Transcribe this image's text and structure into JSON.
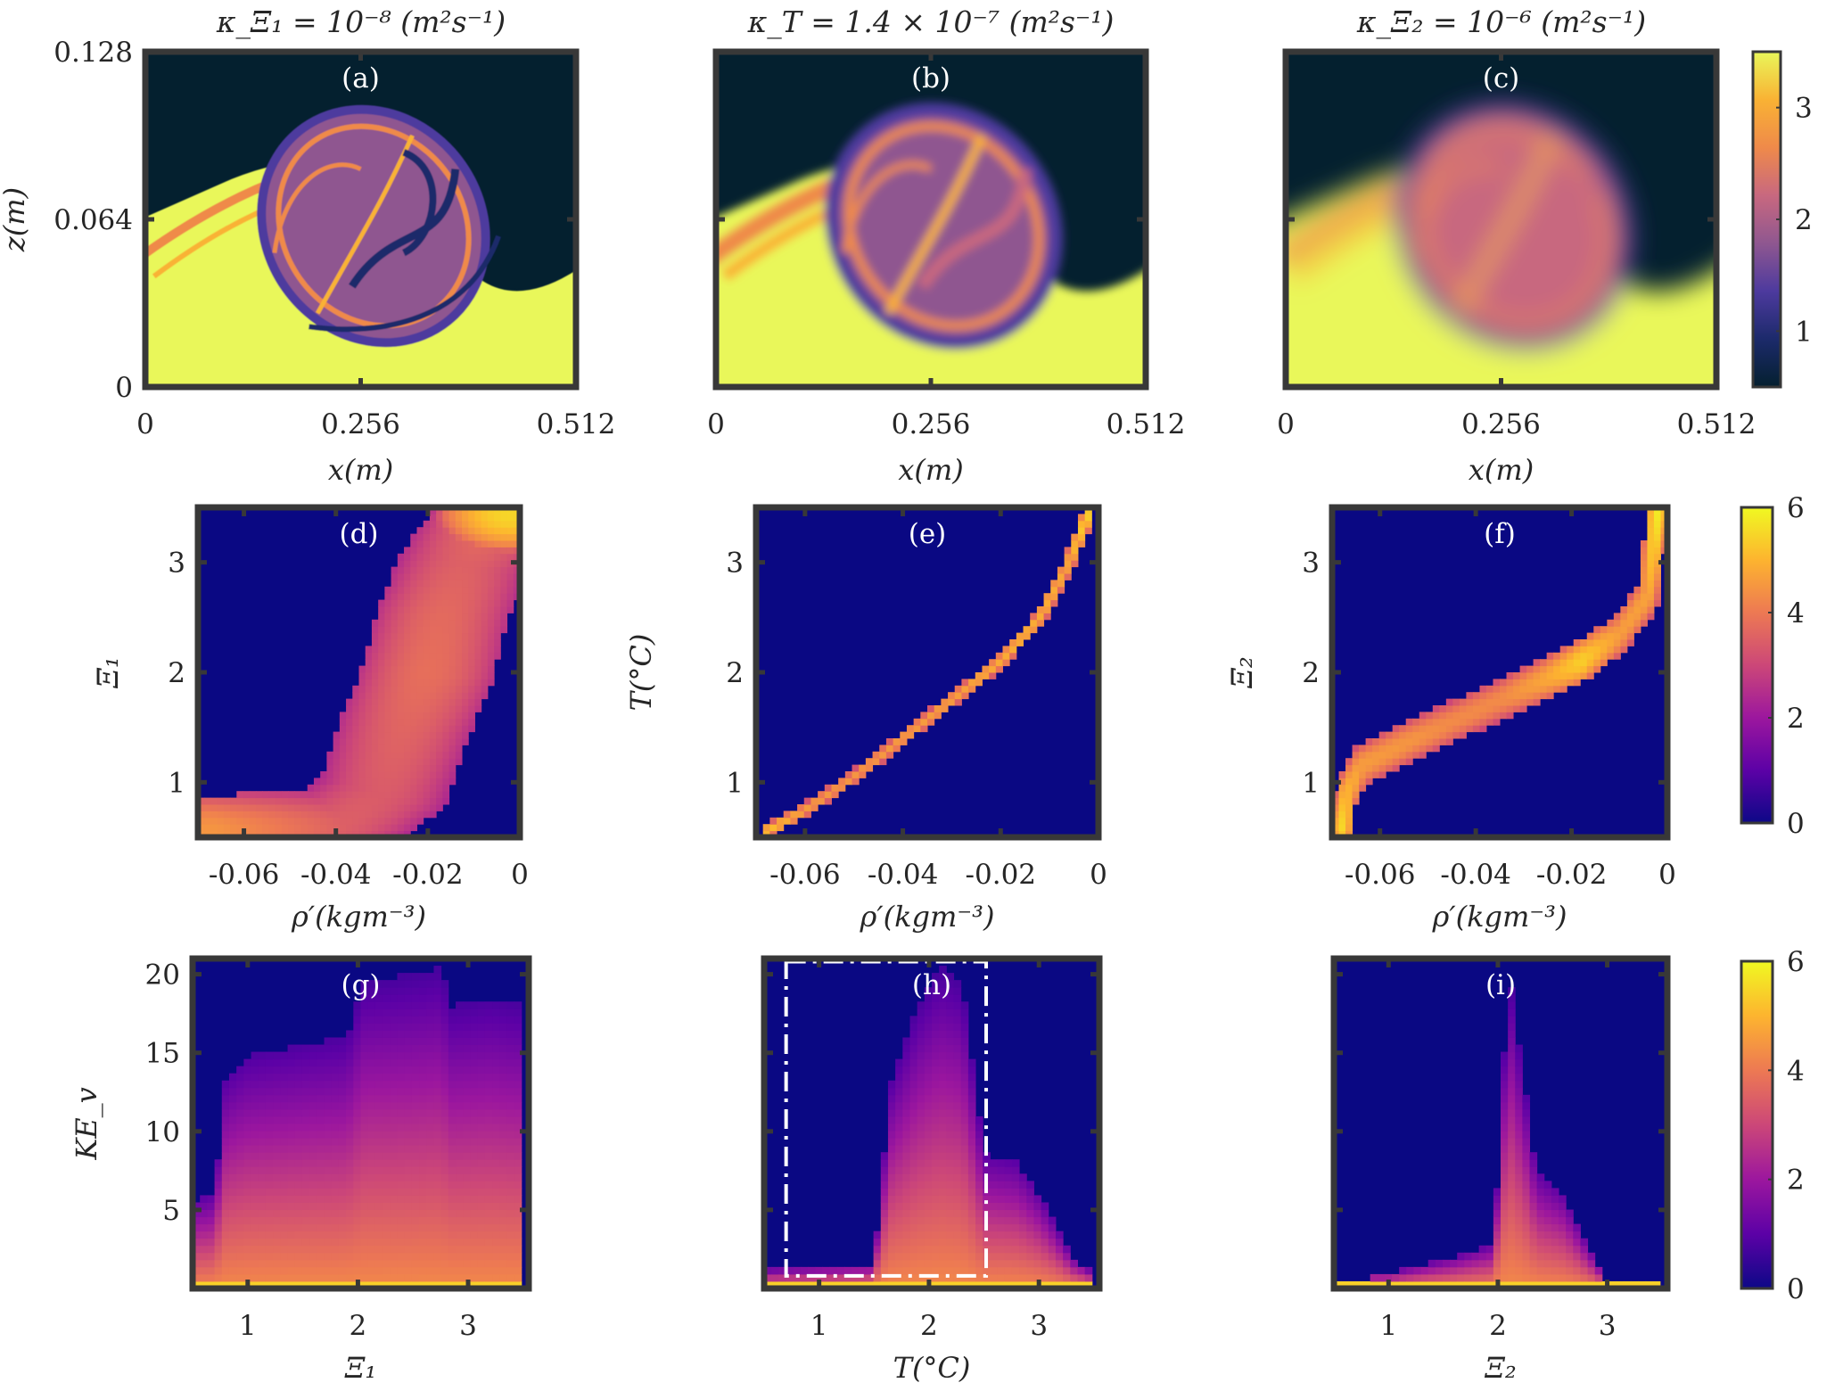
{
  "figure": {
    "column_titles": [
      "κ_Ξ₁ = 10⁻⁸ (m²s⁻¹)",
      "κ_T = 1.4 × 10⁻⁷ (m²s⁻¹)",
      "κ_Ξ₂ = 10⁻⁶ (m²s⁻¹)"
    ],
    "colormaps": {
      "thermal": [
        "#04202f",
        "#1c2a6b",
        "#4d3a9e",
        "#8f5790",
        "#c8687f",
        "#ef8a4a",
        "#f9b234",
        "#e9f75a"
      ],
      "plasma": [
        "#0d0887",
        "#5c01a6",
        "#9c179e",
        "#cc4778",
        "#ed7953",
        "#fdb42f",
        "#f0f921"
      ],
      "background": "#0a0883"
    }
  },
  "chart_data": [
    {
      "id": "a",
      "panel_label": "(a)",
      "type": "heatmap",
      "description": "Ξ1 scalar field snapshot, sharp filaments inside billow",
      "xlabel": "x(m)",
      "ylabel": "z(m)",
      "xlim": [
        0,
        0.512
      ],
      "ylim": [
        0,
        0.128
      ],
      "xticks": [
        "0",
        "0.256",
        "0.512"
      ],
      "yticks": [
        "0",
        "0.064",
        "0.128"
      ],
      "colorbar": "shared-top",
      "sharpness": "sharp"
    },
    {
      "id": "b",
      "panel_label": "(b)",
      "type": "heatmap",
      "description": "Temperature field snapshot, moderately diffused billow",
      "xlabel": "x(m)",
      "ylabel": "",
      "xlim": [
        0,
        0.512
      ],
      "ylim": [
        0,
        0.128
      ],
      "xticks": [
        "0",
        "0.256",
        "0.512"
      ],
      "yticks": [],
      "colorbar": "shared-top",
      "sharpness": "medium"
    },
    {
      "id": "c",
      "panel_label": "(c)",
      "type": "heatmap",
      "description": "Ξ2 scalar field snapshot, strongly diffused billow",
      "xlabel": "x(m)",
      "ylabel": "",
      "xlim": [
        0,
        0.512
      ],
      "ylim": [
        0,
        0.128
      ],
      "xticks": [
        "0",
        "0.256",
        "0.512"
      ],
      "yticks": [],
      "colorbar": "shared-top",
      "sharpness": "smooth"
    },
    {
      "id": "colorbar-top",
      "type": "colorbar",
      "colormap": "thermal",
      "range": [
        0.5,
        3.5
      ],
      "ticks": [
        "1",
        "2",
        "3"
      ],
      "tick_values": [
        1,
        2,
        3
      ]
    },
    {
      "id": "d",
      "panel_label": "(d)",
      "type": "heatmap",
      "description": "Joint histogram of ρ′ and Ξ1 (log counts)",
      "xlabel": "ρ′(kgm⁻³)",
      "ylabel": "Ξ₁",
      "xlim": [
        -0.07,
        0.0
      ],
      "ylim": [
        0.5,
        3.5
      ],
      "xticks": [
        "-0.06",
        "-0.04",
        "-0.02",
        "0"
      ],
      "xtick_values": [
        -0.06,
        -0.04,
        -0.02,
        0
      ],
      "yticks": [
        "1",
        "2",
        "3"
      ],
      "ytick_values": [
        1,
        2,
        3
      ],
      "ridge": [
        [
          -0.068,
          0.55,
          4.5
        ],
        [
          -0.04,
          0.6,
          3.5
        ],
        [
          -0.03,
          0.9,
          3.4
        ],
        [
          -0.025,
          1.5,
          3.6
        ],
        [
          -0.02,
          2.0,
          3.8
        ],
        [
          -0.017,
          2.5,
          3.7
        ],
        [
          -0.012,
          3.0,
          3.5
        ],
        [
          -0.005,
          3.4,
          3.8
        ],
        [
          -0.002,
          3.45,
          5.5
        ]
      ],
      "spread": [
        0.013,
        0.3
      ]
    },
    {
      "id": "e",
      "panel_label": "(e)",
      "type": "heatmap",
      "description": "Joint histogram of ρ′ and T (narrow curve)",
      "xlabel": "ρ′(kgm⁻³)",
      "ylabel": "T(°C)",
      "xlim": [
        -0.07,
        0.0
      ],
      "ylim": [
        0.5,
        3.5
      ],
      "xticks": [
        "-0.06",
        "-0.04",
        "-0.02",
        "0"
      ],
      "xtick_values": [
        -0.06,
        -0.04,
        -0.02,
        0
      ],
      "yticks": [
        "1",
        "2",
        "3"
      ],
      "ytick_values": [
        1,
        2,
        3
      ],
      "ridge": [
        [
          -0.068,
          0.55,
          5.2
        ],
        [
          -0.06,
          0.75,
          4.6
        ],
        [
          -0.05,
          1.05,
          4.5
        ],
        [
          -0.04,
          1.4,
          4.6
        ],
        [
          -0.03,
          1.75,
          4.7
        ],
        [
          -0.02,
          2.1,
          4.9
        ],
        [
          -0.012,
          2.5,
          4.9
        ],
        [
          -0.006,
          3.0,
          4.8
        ],
        [
          -0.002,
          3.45,
          5.5
        ]
      ],
      "spread": [
        0.0012,
        0.05
      ]
    },
    {
      "id": "f",
      "panel_label": "(f)",
      "type": "heatmap",
      "description": "Joint histogram of ρ′ and Ξ2",
      "xlabel": "ρ′(kgm⁻³)",
      "ylabel": "Ξ₂",
      "xlim": [
        -0.07,
        0.0
      ],
      "ylim": [
        0.5,
        3.5
      ],
      "xticks": [
        "-0.06",
        "-0.04",
        "-0.02",
        "0"
      ],
      "xtick_values": [
        -0.06,
        -0.04,
        -0.02,
        0
      ],
      "yticks": [
        "1",
        "2",
        "3"
      ],
      "ytick_values": [
        1,
        2,
        3
      ],
      "ridge": [
        [
          -0.068,
          0.6,
          5.5
        ],
        [
          -0.067,
          0.9,
          5.0
        ],
        [
          -0.064,
          1.15,
          4.6
        ],
        [
          -0.055,
          1.35,
          4.5
        ],
        [
          -0.045,
          1.55,
          4.3
        ],
        [
          -0.035,
          1.75,
          4.3
        ],
        [
          -0.025,
          1.95,
          4.8
        ],
        [
          -0.018,
          2.1,
          5.4
        ],
        [
          -0.01,
          2.35,
          4.6
        ],
        [
          -0.004,
          2.7,
          4.7
        ],
        [
          -0.002,
          3.45,
          5.8
        ]
      ],
      "spread": [
        0.002,
        0.17
      ]
    },
    {
      "id": "colorbar-mid",
      "type": "colorbar",
      "colormap": "plasma",
      "range": [
        0,
        6
      ],
      "ticks": [
        "0",
        "2",
        "4",
        "6"
      ],
      "tick_values": [
        0,
        2,
        4,
        6
      ]
    },
    {
      "id": "g",
      "panel_label": "(g)",
      "type": "heatmap",
      "description": "Joint histogram of Ξ1 and KE_v",
      "xlabel": "Ξ₁",
      "ylabel": "KE_v",
      "xlim": [
        0.5,
        3.55
      ],
      "ylim": [
        0,
        21
      ],
      "xticks": [
        "1",
        "2",
        "3"
      ],
      "xtick_values": [
        1,
        2,
        3
      ],
      "yticks": [
        "5",
        "10",
        "15",
        "20"
      ],
      "ytick_values": [
        5,
        10,
        15,
        20
      ],
      "envelope": [
        [
          0.5,
          5.5
        ],
        [
          0.7,
          6
        ],
        [
          0.8,
          13.5
        ],
        [
          1.0,
          14.8
        ],
        [
          1.5,
          15.5
        ],
        [
          1.9,
          16
        ],
        [
          2.05,
          19.5
        ],
        [
          2.5,
          20
        ],
        [
          2.75,
          20.5
        ],
        [
          2.85,
          18
        ],
        [
          3.2,
          18.5
        ],
        [
          3.5,
          18
        ]
      ]
    },
    {
      "id": "h",
      "panel_label": "(h)",
      "type": "heatmap",
      "description": "Joint histogram of T and KE_v with dash-dot highlight box",
      "xlabel": "T(°C)",
      "ylabel": "",
      "xlim": [
        0.5,
        3.55
      ],
      "ylim": [
        0,
        21
      ],
      "xticks": [
        "1",
        "2",
        "3"
      ],
      "xtick_values": [
        1,
        2,
        3
      ],
      "yticks": [],
      "ytick_values": [
        5,
        10,
        15,
        20
      ],
      "envelope": [
        [
          0.5,
          1.2
        ],
        [
          1.5,
          1.6
        ],
        [
          1.65,
          13
        ],
        [
          1.9,
          18
        ],
        [
          2.1,
          20.5
        ],
        [
          2.3,
          19.5
        ],
        [
          2.5,
          8.5
        ],
        [
          2.8,
          8
        ],
        [
          3.0,
          6
        ],
        [
          3.3,
          2
        ],
        [
          3.5,
          1
        ]
      ],
      "highlight_box": {
        "x": [
          0.7,
          2.52
        ],
        "y": [
          0.8,
          20.8
        ],
        "style": "dash-dot"
      }
    },
    {
      "id": "i",
      "panel_label": "(i)",
      "type": "heatmap",
      "description": "Joint histogram of Ξ2 and KE_v",
      "xlabel": "Ξ₂",
      "ylabel": "",
      "xlim": [
        0.5,
        3.55
      ],
      "ylim": [
        0,
        21
      ],
      "xticks": [
        "1",
        "2",
        "3"
      ],
      "xtick_values": [
        1,
        2,
        3
      ],
      "yticks": [],
      "ytick_values": [
        5,
        10,
        15,
        20
      ],
      "envelope": [
        [
          0.7,
          0.5
        ],
        [
          1.1,
          1.2
        ],
        [
          1.6,
          2
        ],
        [
          1.95,
          2.8
        ],
        [
          2.0,
          7
        ],
        [
          2.05,
          14
        ],
        [
          2.1,
          20.5
        ],
        [
          2.15,
          17.5
        ],
        [
          2.25,
          12.5
        ],
        [
          2.35,
          7.5
        ],
        [
          2.6,
          6
        ],
        [
          2.8,
          3
        ],
        [
          3.0,
          0.5
        ],
        [
          3.5,
          0.3
        ]
      ]
    },
    {
      "id": "colorbar-bot",
      "type": "colorbar",
      "colormap": "plasma",
      "range": [
        0,
        6
      ],
      "ticks": [
        "0",
        "2",
        "4",
        "6"
      ],
      "tick_values": [
        0,
        2,
        4,
        6
      ]
    }
  ]
}
